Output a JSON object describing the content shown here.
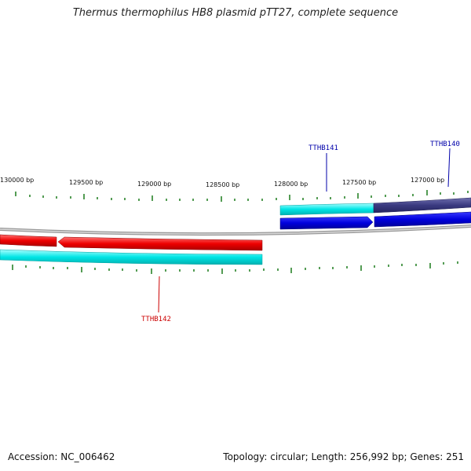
{
  "title": "Thermus thermophilus HB8 plasmid pTT27, complete sequence",
  "footer": {
    "accession": "Accession: NC_006462",
    "summary": "Topology: circular; Length: 256,992 bp; Genes: 251"
  },
  "ruler": {
    "labels": [
      "130000 bp",
      "129500 bp",
      "129000 bp",
      "128500 bp",
      "128000 bp",
      "127500 bp",
      "127000 bp"
    ]
  },
  "genes": [
    {
      "name": "TTHB140",
      "color": "#0000aa"
    },
    {
      "name": "TTHB141",
      "color": "#0000aa"
    },
    {
      "name": "TTHB142",
      "color": "#cc0000"
    }
  ],
  "colors": {
    "forward_gene": "#0000dd",
    "reverse_gene": "#ee0000",
    "cds": "#00e5e5",
    "other_feature": "#3a3a80",
    "backbone": "#888888",
    "ticks": "#1a7a1a"
  }
}
